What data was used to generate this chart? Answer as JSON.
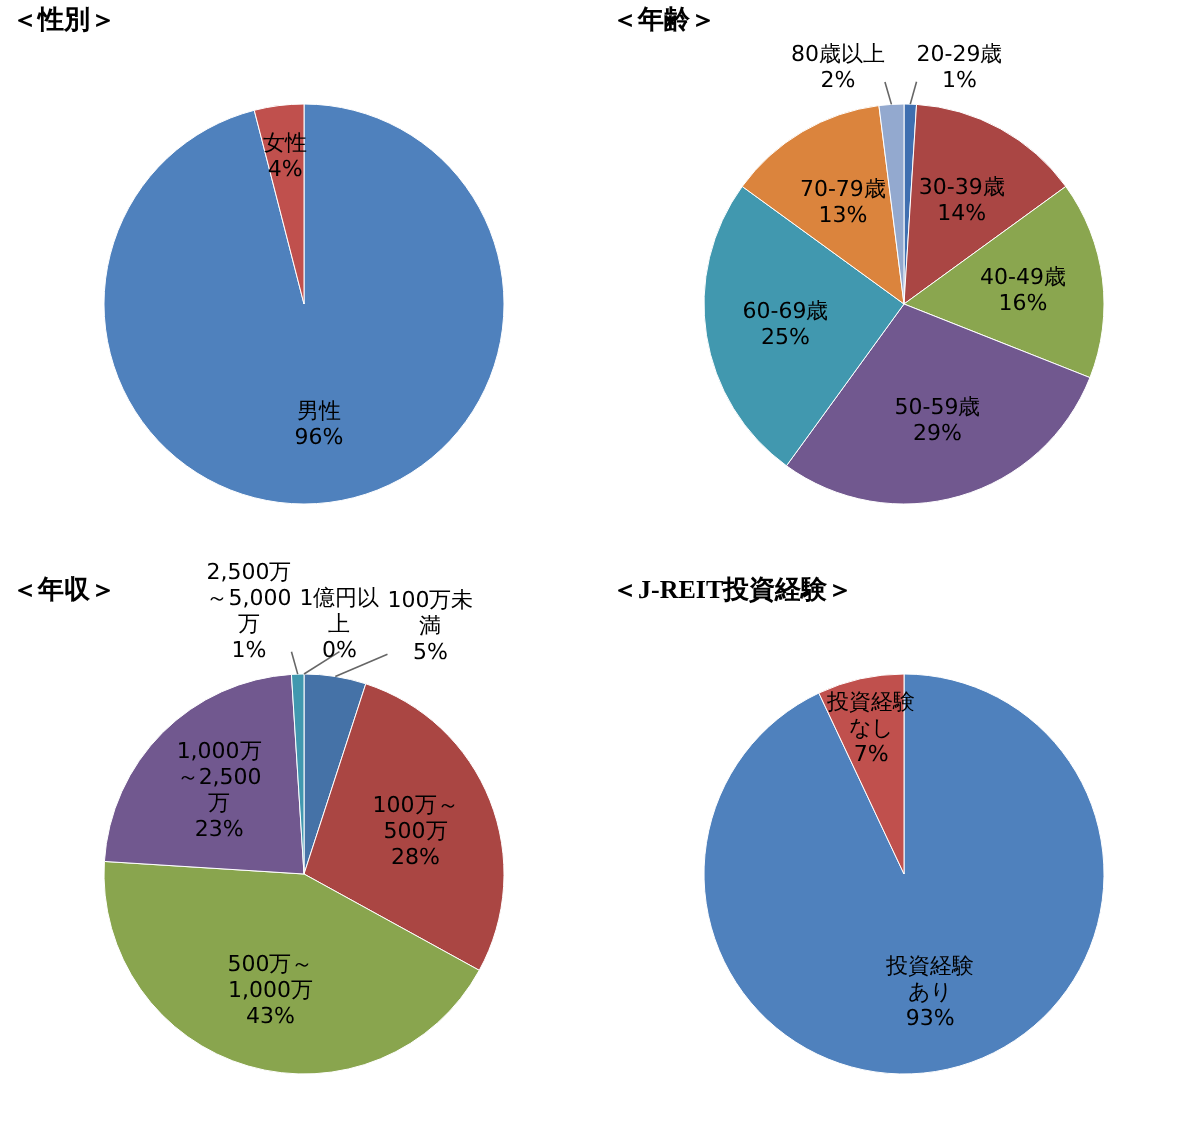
{
  "chart_data": [
    {
      "type": "pie",
      "title": "＜性別＞",
      "categories": [
        "男性",
        "女性"
      ],
      "values": [
        96,
        4
      ],
      "colors": [
        "#4f81bd",
        "#c0504d"
      ],
      "value_labels": [
        "96%",
        "4%"
      ]
    },
    {
      "type": "pie",
      "title": "＜年齢＞",
      "categories": [
        "20-29歳",
        "30-39歳",
        "40-49歳",
        "50-59歳",
        "60-69歳",
        "70-79歳",
        "80歳以上"
      ],
      "values": [
        1,
        14,
        16,
        29,
        25,
        13,
        2
      ],
      "colors": [
        "#3f6fb0",
        "#aa4644",
        "#8aa64f",
        "#71588f",
        "#4198af",
        "#db843d",
        "#93a9cf"
      ],
      "value_labels": [
        "1%",
        "14%",
        "16%",
        "29%",
        "25%",
        "13%",
        "2%"
      ]
    },
    {
      "type": "pie",
      "title": "＜年収＞",
      "categories": [
        "100万未満",
        "100万～500万",
        "500万～1,000万",
        "1,000万～2,500万",
        "2,500万～5,000万",
        "1億円以上"
      ],
      "values": [
        5,
        28,
        43,
        23,
        1,
        0
      ],
      "colors": [
        "#4572a7",
        "#aa4643",
        "#89a54e",
        "#71588f",
        "#4198af",
        "#db843d"
      ],
      "value_labels": [
        "5%",
        "28%",
        "43%",
        "23%",
        "1%",
        "0%"
      ]
    },
    {
      "type": "pie",
      "title": "＜J-REIT投資経験＞",
      "categories": [
        "投資経験あり",
        "投資経験なし"
      ],
      "values": [
        93,
        7
      ],
      "colors": [
        "#4f81bd",
        "#c0504d"
      ],
      "value_labels": [
        "93%",
        "7%"
      ]
    }
  ]
}
